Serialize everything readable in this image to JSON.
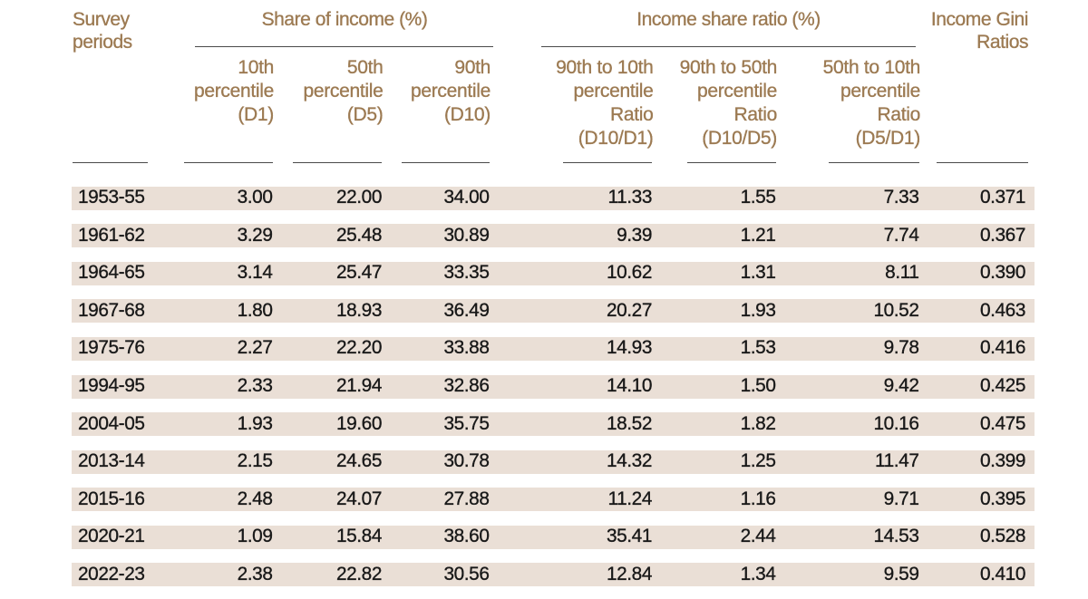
{
  "table": {
    "row_header": "Survey\nperiods",
    "group1_title": "Share of income (%)",
    "group2_title": "Income share ratio (%)",
    "gini_title": "Income Gini\nRatios",
    "subheaders": [
      "10th\npercentile\n(D1)",
      "50th\npercentile\n(D5)",
      "90th\npercentile\n(D10)",
      "90th to 10th\npercentile\nRatio\n(D10/D1)",
      "90th to 50th\npercentile\nRatio\n(D10/D5)",
      "50th to 10th\npercentile\nRatio\n(D5/D1)"
    ],
    "rows": [
      [
        "1953-55",
        "3.00",
        "22.00",
        "34.00",
        "11.33",
        "1.55",
        "7.33",
        "0.371"
      ],
      [
        "1961-62",
        "3.29",
        "25.48",
        "30.89",
        "9.39",
        "1.21",
        "7.74",
        "0.367"
      ],
      [
        "1964-65",
        "3.14",
        "25.47",
        "33.35",
        "10.62",
        "1.31",
        "8.11",
        "0.390"
      ],
      [
        "1967-68",
        "1.80",
        "18.93",
        "36.49",
        "20.27",
        "1.93",
        "10.52",
        "0.463"
      ],
      [
        "1975-76",
        "2.27",
        "22.20",
        "33.88",
        "14.93",
        "1.53",
        "9.78",
        "0.416"
      ],
      [
        "1994-95",
        "2.33",
        "21.94",
        "32.86",
        "14.10",
        "1.50",
        "9.42",
        "0.425"
      ],
      [
        "2004-05",
        "1.93",
        "19.60",
        "35.75",
        "18.52",
        "1.82",
        "10.16",
        "0.475"
      ],
      [
        "2013-14",
        "2.15",
        "24.65",
        "30.78",
        "14.32",
        "1.25",
        "11.47",
        "0.399"
      ],
      [
        "2015-16",
        "2.48",
        "24.07",
        "27.88",
        "11.24",
        "1.16",
        "9.71",
        "0.395"
      ],
      [
        "2020-21",
        "1.09",
        "15.84",
        "38.60",
        "35.41",
        "2.44",
        "14.53",
        "0.528"
      ],
      [
        "2022-23",
        "2.38",
        "22.82",
        "30.56",
        "12.84",
        "1.34",
        "9.59",
        "0.410"
      ]
    ]
  },
  "chart_data": {
    "type": "table",
    "title": "",
    "row_header_label": "Survey periods",
    "column_groups": [
      {
        "label": "Share of income (%)",
        "columns": [
          "10th percentile (D1)",
          "50th percentile (D5)",
          "90th percentile (D10)"
        ]
      },
      {
        "label": "Income share ratio (%)",
        "columns": [
          "90th to 10th percentile Ratio (D10/D1)",
          "90th to 50th percentile Ratio (D10/D5)",
          "50th to 10th percentile Ratio (D5/D1)"
        ]
      },
      {
        "label": "Income Gini Ratios",
        "columns": [
          "Income Gini Ratios"
        ]
      }
    ],
    "categories": [
      "1953-55",
      "1961-62",
      "1964-65",
      "1967-68",
      "1975-76",
      "1994-95",
      "2004-05",
      "2013-14",
      "2015-16",
      "2020-21",
      "2022-23"
    ],
    "series": [
      {
        "name": "10th percentile (D1)",
        "values": [
          3.0,
          3.29,
          3.14,
          1.8,
          2.27,
          2.33,
          1.93,
          2.15,
          2.48,
          1.09,
          2.38
        ]
      },
      {
        "name": "50th percentile (D5)",
        "values": [
          22.0,
          25.48,
          25.47,
          18.93,
          22.2,
          21.94,
          19.6,
          24.65,
          24.07,
          15.84,
          22.82
        ]
      },
      {
        "name": "90th percentile (D10)",
        "values": [
          34.0,
          30.89,
          33.35,
          36.49,
          33.88,
          32.86,
          35.75,
          30.78,
          27.88,
          38.6,
          30.56
        ]
      },
      {
        "name": "90th to 10th percentile Ratio (D10/D1)",
        "values": [
          11.33,
          9.39,
          10.62,
          20.27,
          14.93,
          14.1,
          18.52,
          14.32,
          11.24,
          35.41,
          12.84
        ]
      },
      {
        "name": "90th to 50th percentile Ratio (D10/D5)",
        "values": [
          1.55,
          1.21,
          1.31,
          1.93,
          1.53,
          1.5,
          1.82,
          1.25,
          1.16,
          2.44,
          1.34
        ]
      },
      {
        "name": "50th to 10th percentile Ratio (D5/D1)",
        "values": [
          7.33,
          7.74,
          8.11,
          10.52,
          9.78,
          9.42,
          10.16,
          11.47,
          9.71,
          14.53,
          9.59
        ]
      },
      {
        "name": "Income Gini Ratios",
        "values": [
          0.371,
          0.367,
          0.39,
          0.463,
          0.416,
          0.425,
          0.475,
          0.399,
          0.395,
          0.528,
          0.41
        ]
      }
    ]
  },
  "colors": {
    "header_text": "#9c7a52",
    "body_text": "#191919",
    "row_band": "#eadfd6",
    "rule": "#4a4a4a",
    "background": "#ffffff"
  },
  "layout": {
    "col_right_edges": [
      300.5,
      421,
      539.5,
      719,
      855.5,
      1013.5,
      1131
    ],
    "row_top_first": 205.8,
    "row_pitch": 41.55
  }
}
